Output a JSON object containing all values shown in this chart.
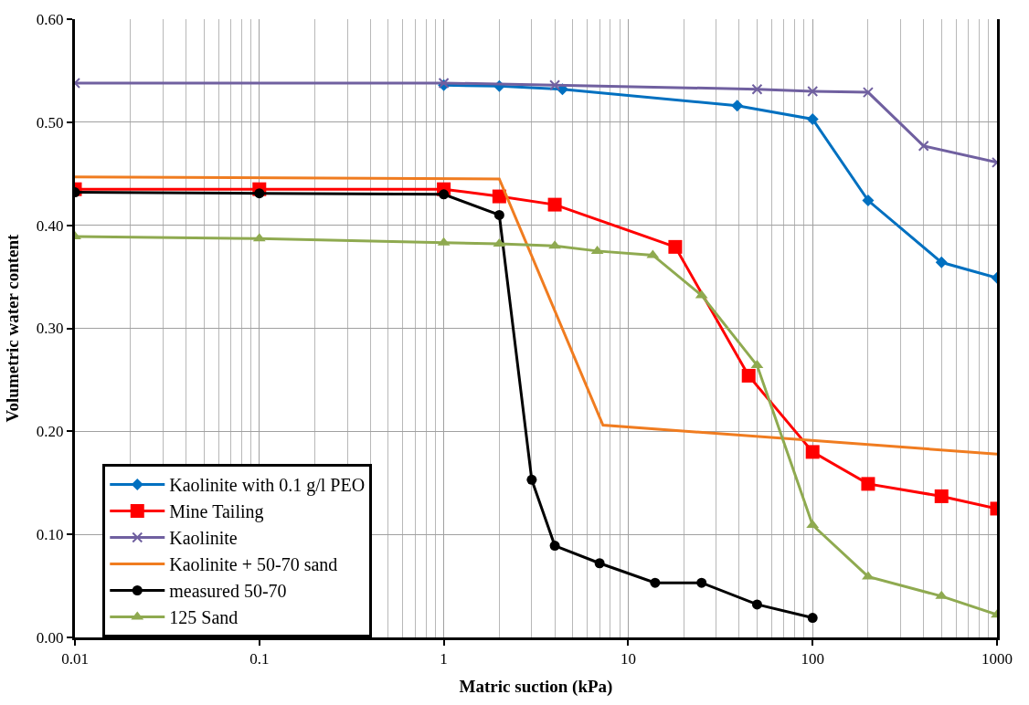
{
  "chart_data": {
    "type": "line",
    "xlabel": "Matric suction (kPa)",
    "ylabel": "Volumetric water content",
    "log": "x",
    "grid": true,
    "legend": "bottom left",
    "xlim": [
      0.01,
      1000
    ],
    "xticks": [
      0.01,
      0.1,
      1,
      10,
      100,
      1000
    ],
    "ylim": [
      0,
      0.6
    ],
    "yticks": [
      {
        "value": 0,
        "label": "0.00"
      },
      {
        "value": 0.1,
        "label": "0.10"
      },
      {
        "value": 0.2,
        "label": "0.20"
      },
      {
        "value": 0.3,
        "label": "0.30"
      },
      {
        "value": 0.4,
        "label": "0.40"
      },
      {
        "value": 0.5,
        "label": "0.50"
      },
      {
        "value": 0.6,
        "label": "0.60"
      }
    ],
    "series": [
      {
        "name": "Kaolinite with 0.1 g/l PEO",
        "color": "#0070c0",
        "marker": "diamond",
        "x": [
          1,
          2,
          4.4,
          39,
          100,
          200,
          500,
          1000
        ],
        "values": [
          0.536,
          0.535,
          0.532,
          0.516,
          0.503,
          0.424,
          0.364,
          0.349
        ]
      },
      {
        "name": "Mine Tailing",
        "color": "#ff0000",
        "marker": "square",
        "x": [
          0.01,
          0.1,
          1,
          2,
          4,
          18,
          45,
          100,
          200,
          500,
          1000
        ],
        "values": [
          0.435,
          0.435,
          0.435,
          0.428,
          0.42,
          0.379,
          0.254,
          0.18,
          0.149,
          0.137,
          0.125
        ]
      },
      {
        "name": "Kaolinite",
        "color": "#7060a0",
        "marker": "cross",
        "x": [
          0.01,
          1,
          4,
          50,
          100,
          200,
          400,
          1000
        ],
        "values": [
          0.538,
          0.538,
          0.536,
          0.532,
          0.53,
          0.529,
          0.477,
          0.461
        ]
      },
      {
        "name": "Kaolinite + 50-70 sand",
        "color": "#f07c20",
        "marker": "none",
        "x": [
          0.01,
          2,
          7.3,
          1000
        ],
        "values": [
          0.447,
          0.445,
          0.206,
          0.178
        ]
      },
      {
        "name": "measured 50-70",
        "color": "#000000",
        "marker": "circle",
        "x": [
          0.01,
          0.1,
          1,
          2,
          3,
          4,
          7,
          14,
          25,
          50,
          100
        ],
        "values": [
          0.432,
          0.431,
          0.43,
          0.41,
          0.153,
          0.089,
          0.072,
          0.053,
          0.053,
          0.032,
          0.019
        ]
      },
      {
        "name": "125 Sand",
        "color": "#8faa50",
        "marker": "triangle",
        "x": [
          0.01,
          0.1,
          1,
          2,
          4,
          6.8,
          13.6,
          25,
          50,
          100,
          200,
          500,
          1000
        ],
        "values": [
          0.389,
          0.387,
          0.383,
          0.382,
          0.38,
          0.375,
          0.371,
          0.332,
          0.264,
          0.109,
          0.059,
          0.04,
          0.022
        ]
      }
    ]
  }
}
